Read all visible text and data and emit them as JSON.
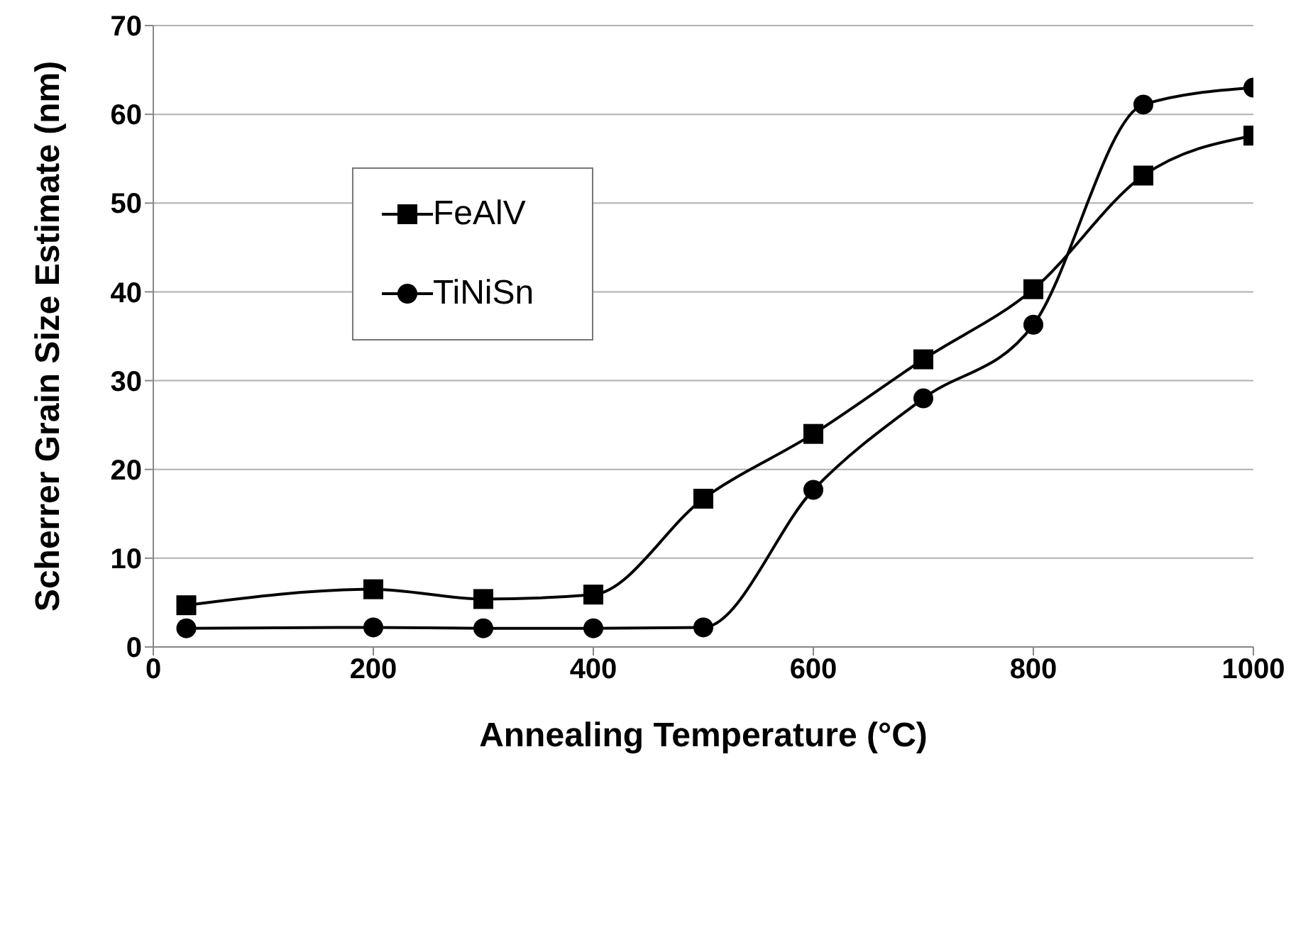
{
  "chart_data": {
    "type": "line",
    "xlabel": "Annealing Temperature (°C)",
    "ylabel": "Scherrer Grain Size Estimate (nm)",
    "x": [
      30,
      200,
      300,
      400,
      500,
      600,
      700,
      800,
      900,
      1000
    ],
    "series": [
      {
        "name": "FeAlV",
        "color": "#000000",
        "marker": "square",
        "values": [
          4.7,
          6.5,
          5.4,
          5.9,
          16.7,
          24.0,
          32.4,
          40.3,
          53.1,
          57.6
        ]
      },
      {
        "name": "TiNiSn",
        "color": "#000000",
        "marker": "circle",
        "values": [
          2.1,
          2.2,
          2.1,
          2.1,
          2.2,
          17.7,
          28.0,
          36.3,
          61.1,
          63.0
        ]
      }
    ],
    "xlim": [
      0,
      1000
    ],
    "xticks": [
      0,
      200,
      400,
      600,
      800,
      1000
    ],
    "ylim": [
      0,
      70
    ],
    "yticks": [
      0,
      10,
      20,
      30,
      40,
      50,
      60,
      70
    ],
    "grid": "y",
    "legend": "top left",
    "line_style": "solid"
  }
}
